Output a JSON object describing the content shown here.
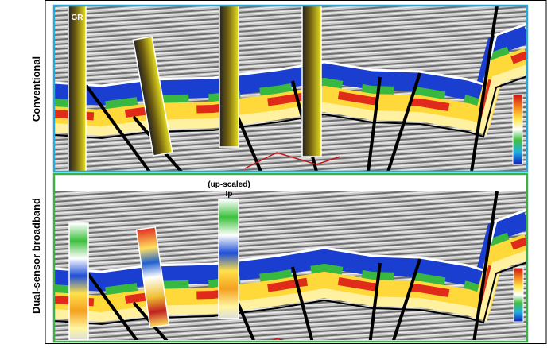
{
  "panels": [
    {
      "label": "Conventional",
      "well_label": "GR"
    },
    {
      "label": "Dual-sensor broadband",
      "well_label": [
        "(up-scaled)",
        "Ip"
      ]
    }
  ]
}
